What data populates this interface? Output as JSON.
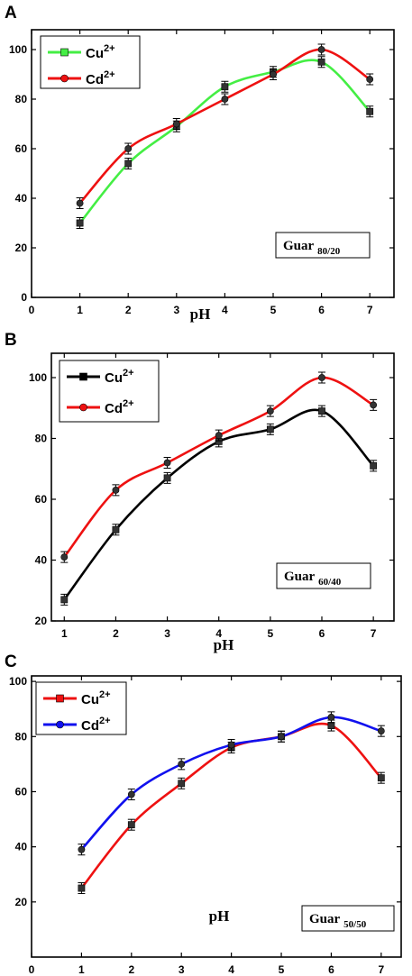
{
  "chart_data": [
    {
      "type": "line",
      "panel_label": "A",
      "xlabel": "pH",
      "x_ticks": [
        0,
        1,
        2,
        3,
        4,
        5,
        6,
        7
      ],
      "y_ticks": [
        0,
        20,
        40,
        60,
        80,
        100
      ],
      "xlim": [
        0,
        7.5
      ],
      "ylim": [
        0,
        108
      ],
      "legend_position": "top-left",
      "box_label": "Guar",
      "box_subscript": "80/20",
      "series": [
        {
          "name": "Cu",
          "superscript": "2+",
          "color": "#44ee44",
          "marker": "square",
          "x": [
            1,
            2,
            3,
            4,
            5,
            6,
            7
          ],
          "y": [
            30,
            54,
            69,
            85,
            91,
            95,
            75
          ]
        },
        {
          "name": "Cd",
          "superscript": "2+",
          "color": "#ee1111",
          "marker": "circle",
          "x": [
            1,
            2,
            3,
            4,
            5,
            6,
            7
          ],
          "y": [
            38,
            60,
            70,
            80,
            90,
            100,
            88
          ]
        }
      ]
    },
    {
      "type": "line",
      "panel_label": "B",
      "xlabel": "pH",
      "x_ticks": [
        1,
        2,
        3,
        4,
        5,
        6,
        7
      ],
      "y_ticks": [
        20,
        40,
        60,
        80,
        100
      ],
      "xlim": [
        0.75,
        7.4
      ],
      "ylim": [
        20,
        108
      ],
      "legend_position": "top-left",
      "box_label": "Guar",
      "box_subscript": "60/40",
      "series": [
        {
          "name": "Cu",
          "superscript": "2+",
          "color": "#000000",
          "marker": "square",
          "x": [
            1,
            2,
            3,
            4,
            5,
            6,
            7
          ],
          "y": [
            27,
            50,
            67,
            79,
            83,
            89,
            71
          ]
        },
        {
          "name": "Cd",
          "superscript": "2+",
          "color": "#ee1111",
          "marker": "circle",
          "x": [
            1,
            2,
            3,
            4,
            5,
            6,
            7
          ],
          "y": [
            41,
            63,
            72,
            81,
            89,
            100,
            91
          ]
        }
      ]
    },
    {
      "type": "line",
      "panel_label": "C",
      "xlabel": "pH",
      "x_ticks": [
        0,
        1,
        2,
        3,
        4,
        5,
        6,
        7
      ],
      "y_ticks": [
        20,
        40,
        60,
        80,
        100
      ],
      "xlim": [
        0,
        7.4
      ],
      "ylim": [
        0,
        102
      ],
      "legend_position": "top-left",
      "box_label": "Guar",
      "box_subscript": "50/50",
      "series": [
        {
          "name": "Cu",
          "superscript": "2+",
          "color": "#ee1111",
          "marker": "square",
          "x": [
            1,
            2,
            3,
            4,
            5,
            6,
            7
          ],
          "y": [
            25,
            48,
            63,
            76,
            80,
            84,
            65
          ]
        },
        {
          "name": "Cd",
          "superscript": "2+",
          "color": "#1111ee",
          "marker": "circle",
          "x": [
            1,
            2,
            3,
            4,
            5,
            6,
            7
          ],
          "y": [
            39,
            59,
            70,
            77,
            80,
            87,
            82
          ]
        }
      ]
    }
  ]
}
